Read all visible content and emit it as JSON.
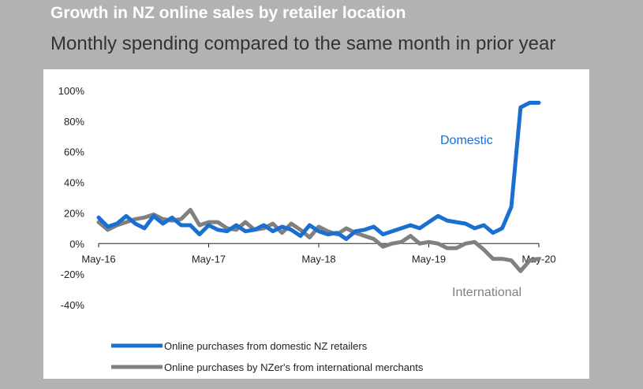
{
  "header": {
    "title": "Growth in NZ online sales by retailer location",
    "subtitle": "Monthly spending compared to the same month in prior year"
  },
  "colors": {
    "background": "#b2b2b2",
    "panel": "#ffffff",
    "domestic": "#1a6fd1",
    "international": "#808080"
  },
  "chart_data": {
    "type": "line",
    "title": "Growth in NZ online sales by retailer location",
    "subtitle": "Monthly spending compared to the same month in prior year",
    "xlabel": "",
    "ylabel": "",
    "ylim": [
      -40,
      100
    ],
    "y_ticks": [
      -40,
      -20,
      0,
      20,
      40,
      60,
      80,
      100
    ],
    "y_tick_labels": [
      "-40%",
      "-20%",
      "0%",
      "20%",
      "40%",
      "60%",
      "80%",
      "100%"
    ],
    "x_ticks": [
      "May-16",
      "May-17",
      "May-18",
      "May-19",
      "May-20"
    ],
    "grid": false,
    "legend_position": "bottom-left",
    "x": [
      "May-16",
      "Jun-16",
      "Jul-16",
      "Aug-16",
      "Sep-16",
      "Oct-16",
      "Nov-16",
      "Dec-16",
      "Jan-17",
      "Feb-17",
      "Mar-17",
      "Apr-17",
      "May-17",
      "Jun-17",
      "Jul-17",
      "Aug-17",
      "Sep-17",
      "Oct-17",
      "Nov-17",
      "Dec-17",
      "Jan-18",
      "Feb-18",
      "Mar-18",
      "Apr-18",
      "May-18",
      "Jun-18",
      "Jul-18",
      "Aug-18",
      "Sep-18",
      "Oct-18",
      "Nov-18",
      "Dec-18",
      "Jan-19",
      "Feb-19",
      "Mar-19",
      "Apr-19",
      "May-19",
      "Jun-19",
      "Jul-19",
      "Aug-19",
      "Sep-19",
      "Oct-19",
      "Nov-19",
      "Dec-19",
      "Jan-20",
      "Feb-20",
      "Mar-20",
      "Apr-20",
      "May-20"
    ],
    "series": [
      {
        "name": "Online purchases from domestic NZ retailers",
        "color": "#1a6fd1",
        "values": [
          17,
          11,
          13,
          18,
          13,
          10,
          18,
          13,
          17,
          12,
          12,
          6,
          12,
          9,
          8,
          12,
          8,
          9,
          12,
          8,
          11,
          9,
          5,
          12,
          8,
          6,
          7,
          3,
          8,
          9,
          11,
          6,
          8,
          10,
          12,
          10,
          14,
          18,
          15,
          14,
          13,
          10,
          12,
          7,
          10,
          24,
          89,
          92,
          92
        ]
      },
      {
        "name": "Online purchases by NZer's from international merchants",
        "color": "#808080",
        "values": [
          14,
          9,
          12,
          14,
          16,
          17,
          19,
          16,
          15,
          16,
          22,
          12,
          14,
          14,
          10,
          9,
          14,
          9,
          10,
          13,
          7,
          13,
          9,
          4,
          11,
          8,
          6,
          10,
          7,
          5,
          3,
          -2,
          0,
          1,
          5,
          0,
          1,
          0,
          -3,
          -3,
          0,
          1,
          -4,
          -10,
          -10,
          -11,
          -18,
          -11,
          -10
        ]
      }
    ],
    "annotations": [
      {
        "text": "Domestic",
        "series": "Online purchases from domestic NZ retailers",
        "color": "#1a6fd1"
      },
      {
        "text": "International",
        "series": "Online purchases by NZer's from international merchants",
        "color": "#808080"
      }
    ],
    "legend": [
      {
        "label": "Online purchases from domestic NZ retailers",
        "color": "#1a6fd1"
      },
      {
        "label": "Online purchases by NZer's from international merchants",
        "color": "#808080"
      }
    ]
  }
}
